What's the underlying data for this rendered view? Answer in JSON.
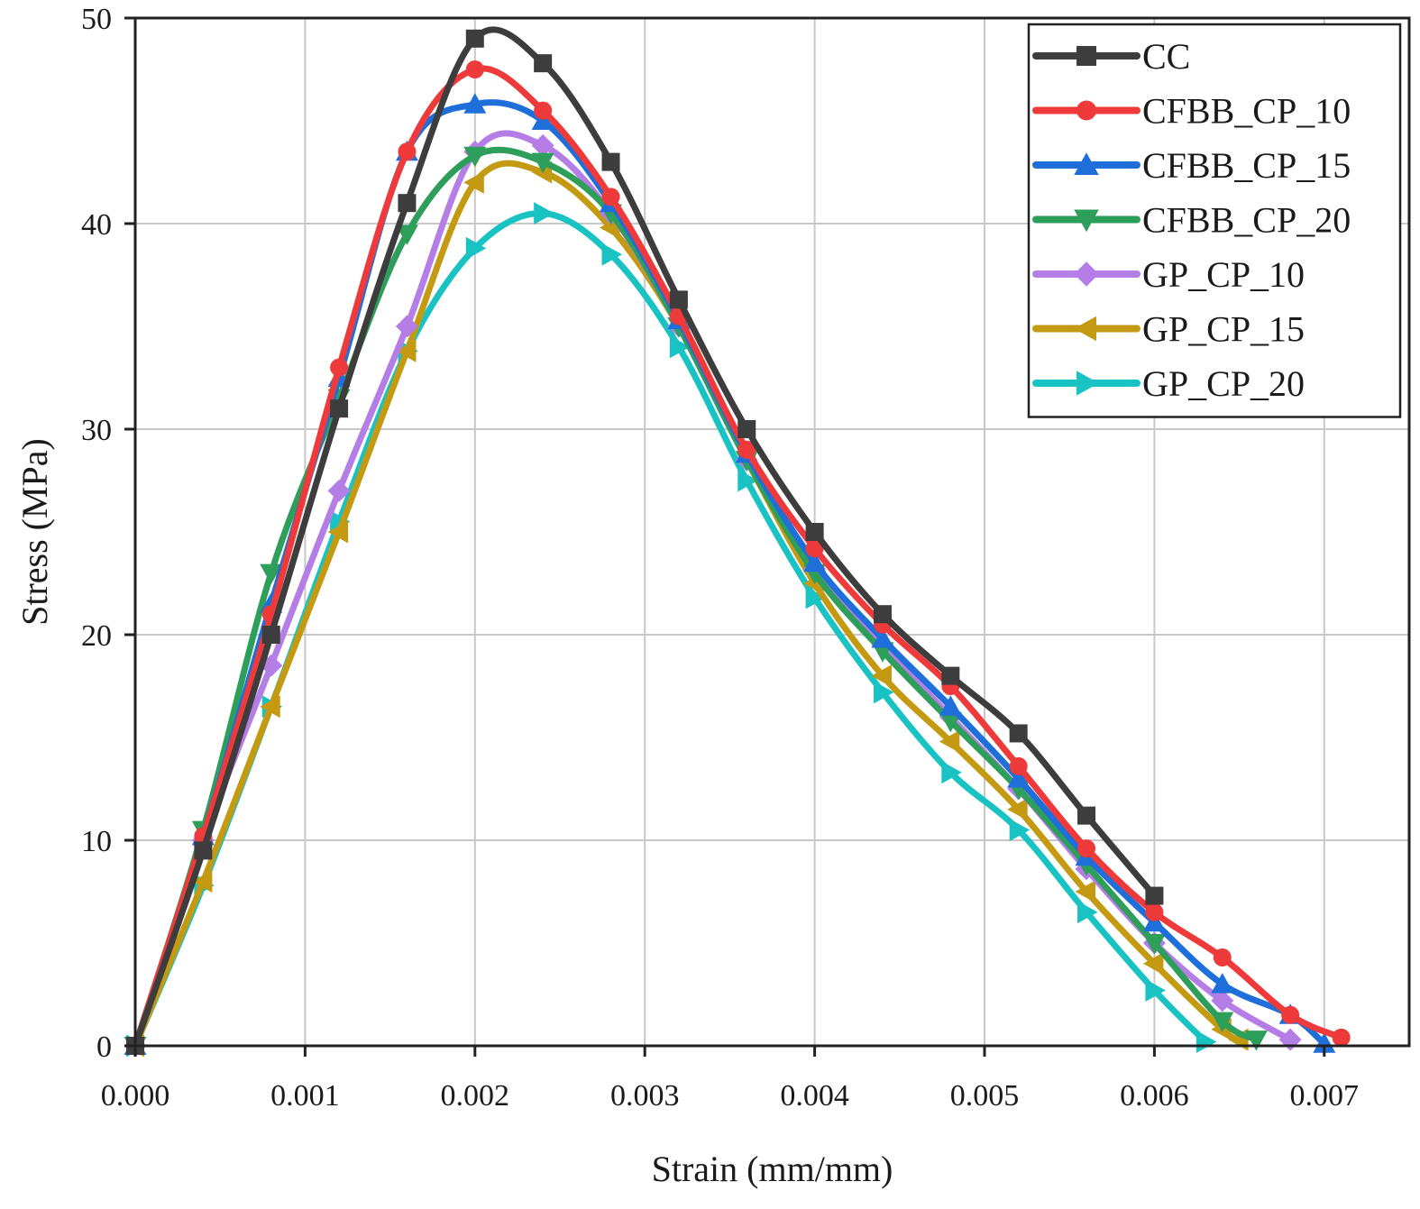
{
  "chart_data": {
    "type": "line",
    "title": "",
    "xlabel": "Strain (mm/mm)",
    "ylabel": "Stress (MPa)",
    "xlim": [
      0,
      0.0075
    ],
    "ylim": [
      0,
      50
    ],
    "xticks": [
      0.0,
      0.001,
      0.002,
      0.003,
      0.004,
      0.005,
      0.006,
      0.007
    ],
    "xtick_labels": [
      "0.000",
      "0.001",
      "0.002",
      "0.003",
      "0.004",
      "0.005",
      "0.006",
      "0.007"
    ],
    "yticks": [
      0,
      10,
      20,
      30,
      40,
      50
    ],
    "ytick_labels": [
      "0",
      "10",
      "20",
      "30",
      "40",
      "50"
    ],
    "grid": true,
    "legend_position": "top-right",
    "series": [
      {
        "name": "CC",
        "color": "#3d3d3d",
        "marker": "square",
        "x": [
          0.0,
          0.0004,
          0.0008,
          0.0012,
          0.0016,
          0.002,
          0.0024,
          0.0028,
          0.0032,
          0.0036,
          0.004,
          0.0044,
          0.0048,
          0.0052,
          0.0056,
          0.006
        ],
        "y": [
          0,
          9.5,
          20,
          31,
          41,
          49,
          47.8,
          43,
          36.3,
          30,
          25,
          21,
          18,
          15.2,
          11.2,
          7.3
        ]
      },
      {
        "name": "CFBB_CP_10",
        "color": "#ee3a3a",
        "marker": "circle",
        "x": [
          0.0,
          0.0004,
          0.0008,
          0.0012,
          0.0016,
          0.002,
          0.0024,
          0.0028,
          0.0032,
          0.0036,
          0.004,
          0.0044,
          0.0048,
          0.0052,
          0.0056,
          0.006,
          0.0064,
          0.0068,
          0.0071
        ],
        "y": [
          0,
          10.2,
          21,
          33,
          43.5,
          47.5,
          45.5,
          41.3,
          35.5,
          29,
          24.2,
          20.5,
          17.5,
          13.6,
          9.6,
          6.5,
          4.3,
          1.5,
          0.4
        ]
      },
      {
        "name": "CFBB_CP_15",
        "color": "#1f6fdb",
        "marker": "triangle-up",
        "x": [
          0.0,
          0.0004,
          0.0008,
          0.0012,
          0.0016,
          0.002,
          0.0024,
          0.0028,
          0.0032,
          0.0036,
          0.004,
          0.0044,
          0.0048,
          0.0052,
          0.0056,
          0.006,
          0.0064,
          0.0068,
          0.007
        ],
        "y": [
          0,
          10.2,
          21.5,
          32.5,
          43.5,
          45.8,
          45,
          41,
          35.3,
          28.8,
          23.5,
          19.8,
          16.5,
          13,
          9.2,
          6,
          3,
          1.5,
          0.1
        ]
      },
      {
        "name": "CFBB_CP_20",
        "color": "#2e9e5b",
        "marker": "triangle-down",
        "x": [
          0.0,
          0.0004,
          0.0008,
          0.0012,
          0.0016,
          0.002,
          0.0024,
          0.0028,
          0.0032,
          0.0036,
          0.004,
          0.0044,
          0.0048,
          0.0052,
          0.0056,
          0.006,
          0.0064,
          0.0066
        ],
        "y": [
          0,
          10.5,
          23,
          31.5,
          39.5,
          43.3,
          43,
          40.5,
          35,
          28.5,
          23,
          19.2,
          15.8,
          12.5,
          8.8,
          5,
          1.2,
          0.3
        ]
      },
      {
        "name": "GP_CP_10",
        "color": "#b57ee6",
        "marker": "diamond",
        "x": [
          0.0,
          0.0004,
          0.0008,
          0.0012,
          0.0016,
          0.002,
          0.0024,
          0.0028,
          0.0032,
          0.0036,
          0.004,
          0.0044,
          0.0048,
          0.0052,
          0.0056,
          0.006,
          0.0064,
          0.0068
        ],
        "y": [
          0,
          10,
          18.5,
          27,
          35,
          43.5,
          43.8,
          40.5,
          35,
          28.5,
          23.2,
          19.5,
          16,
          12.5,
          8.6,
          5,
          2.2,
          0.3
        ]
      },
      {
        "name": "GP_CP_15",
        "color": "#c49a12",
        "marker": "triangle-left",
        "x": [
          0.0,
          0.0004,
          0.0008,
          0.0012,
          0.0016,
          0.002,
          0.0024,
          0.0028,
          0.0032,
          0.0036,
          0.004,
          0.0044,
          0.0048,
          0.0052,
          0.0056,
          0.006,
          0.0064,
          0.0065
        ],
        "y": [
          0,
          8,
          16.5,
          25,
          33.8,
          42,
          42.5,
          39.8,
          35,
          28.5,
          22.5,
          18,
          14.8,
          11.5,
          7.5,
          4,
          0.8,
          0.3
        ]
      },
      {
        "name": "GP_CP_20",
        "color": "#19c3c3",
        "marker": "triangle-right",
        "x": [
          0.0,
          0.0004,
          0.0008,
          0.0012,
          0.0016,
          0.002,
          0.0024,
          0.0028,
          0.0032,
          0.0036,
          0.004,
          0.0044,
          0.0048,
          0.0052,
          0.0056,
          0.006,
          0.0063
        ],
        "y": [
          0,
          7.8,
          16.5,
          25.5,
          33.8,
          38.8,
          40.5,
          38.5,
          34,
          27.5,
          21.8,
          17.2,
          13.3,
          10.5,
          6.5,
          2.7,
          0.2
        ]
      }
    ]
  }
}
